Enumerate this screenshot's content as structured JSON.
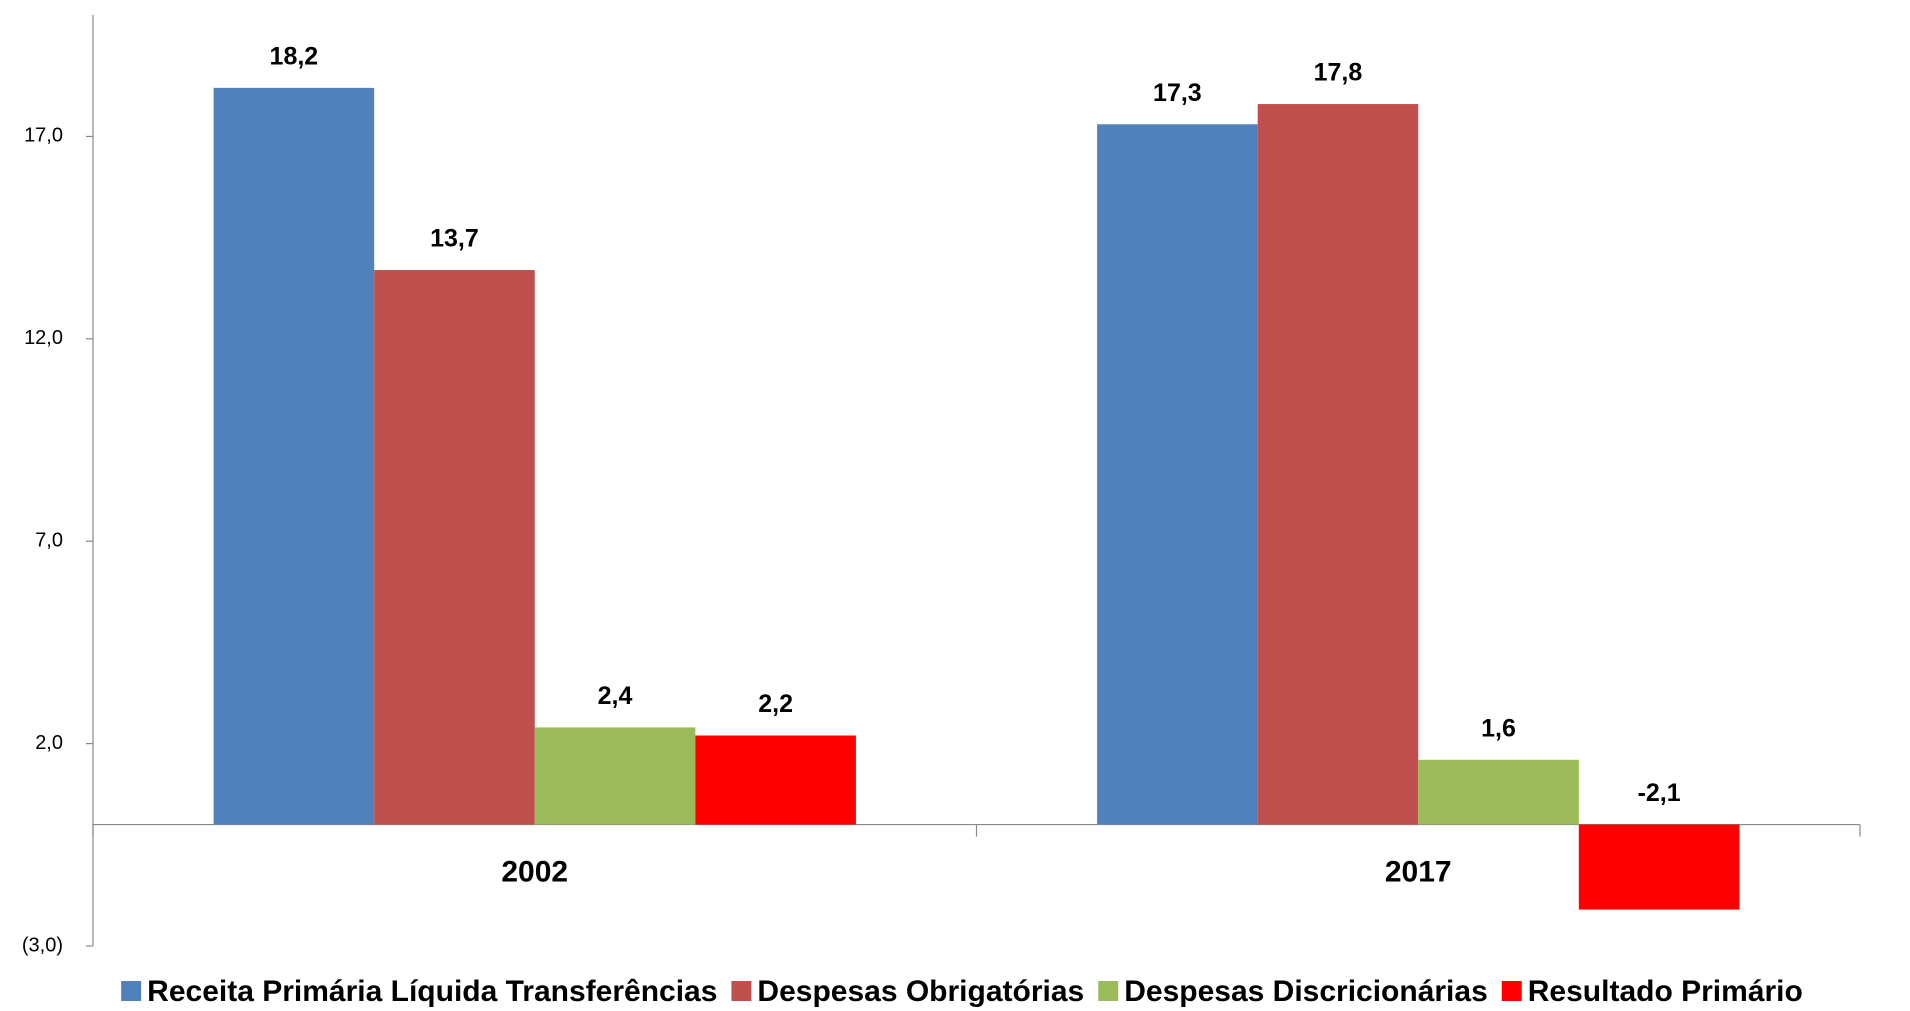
{
  "chart_data": {
    "type": "bar",
    "categories": [
      "2002",
      "2017"
    ],
    "series": [
      {
        "name": "Receita Primária Líquida Transferências",
        "color": "#4f81bd",
        "values": [
          18.2,
          17.3
        ],
        "value_labels": [
          "18,2",
          "17,3"
        ]
      },
      {
        "name": "Despesas Obrigatórias",
        "color": "#c0504d",
        "values": [
          13.7,
          17.8
        ],
        "value_labels": [
          "13,7",
          "17,8"
        ]
      },
      {
        "name": "Despesas Discricionárias",
        "color": "#9bbb59",
        "values": [
          2.4,
          1.6
        ],
        "value_labels": [
          "2,4",
          "1,6"
        ]
      },
      {
        "name": "Resultado Primário",
        "color": "#ff0000",
        "values": [
          2.2,
          -2.1
        ],
        "value_labels": [
          "2,2",
          "-2,1"
        ]
      }
    ],
    "ylim": [
      -3,
      20
    ],
    "yticks": [
      {
        "value": -3,
        "label": "(3,0)"
      },
      {
        "value": 2,
        "label": "2,0"
      },
      {
        "value": 7,
        "label": "7,0"
      },
      {
        "value": 12,
        "label": "12,0"
      },
      {
        "value": 17,
        "label": "17,0"
      }
    ],
    "legend": "bottom"
  }
}
